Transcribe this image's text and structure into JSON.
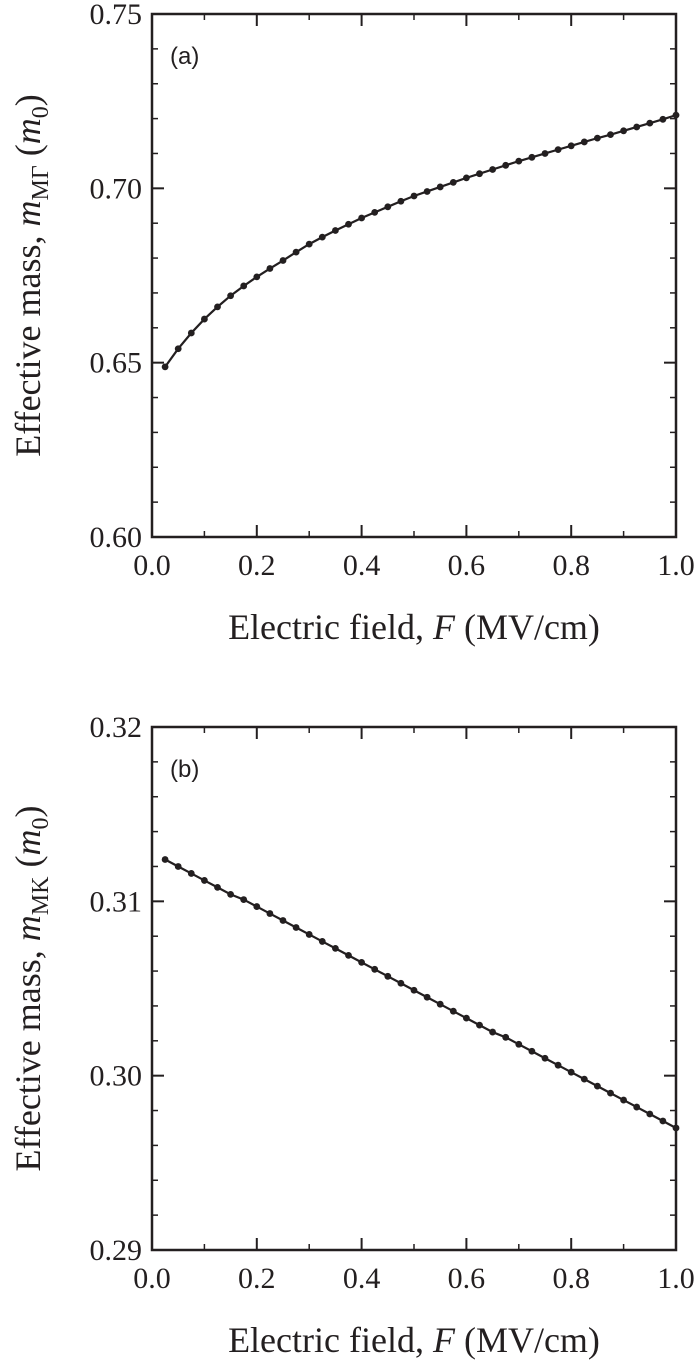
{
  "chart_data": [
    {
      "type": "line",
      "panel_label": "(a)",
      "xlabel": [
        "Electric field, ",
        "F",
        " (MV/cm)"
      ],
      "ylabel": [
        "Effective mass, ",
        "m",
        "MΓ",
        " (",
        "m",
        "0",
        ")"
      ],
      "x": [
        0.025,
        0.05,
        0.075,
        0.1,
        0.125,
        0.15,
        0.175,
        0.2,
        0.225,
        0.25,
        0.275,
        0.3,
        0.325,
        0.35,
        0.375,
        0.4,
        0.425,
        0.45,
        0.475,
        0.5,
        0.525,
        0.55,
        0.575,
        0.6,
        0.625,
        0.65,
        0.675,
        0.7,
        0.725,
        0.75,
        0.775,
        0.8,
        0.825,
        0.85,
        0.875,
        0.9,
        0.925,
        0.95,
        0.975,
        1.0
      ],
      "series": [
        {
          "color": "#231f20",
          "values": [
            0.6488,
            0.654,
            0.6585,
            0.6625,
            0.666,
            0.6692,
            0.672,
            0.6746,
            0.677,
            0.6793,
            0.6817,
            0.684,
            0.686,
            0.6879,
            0.6897,
            0.6915,
            0.6931,
            0.6947,
            0.6963,
            0.6978,
            0.6991,
            0.7004,
            0.7017,
            0.703,
            0.7042,
            0.7054,
            0.7066,
            0.7078,
            0.7089,
            0.71,
            0.7111,
            0.7122,
            0.7133,
            0.7144,
            0.7154,
            0.7165,
            0.7176,
            0.7187,
            0.7198,
            0.721
          ]
        }
      ],
      "markers": true,
      "xlim": [
        0,
        1
      ],
      "ylim": [
        0.6,
        0.75
      ],
      "xticks": [
        {
          "value": 0,
          "label": "0.0"
        },
        0.2,
        0.4,
        0.6,
        0.8,
        {
          "value": 1,
          "label": "1.0"
        }
      ],
      "yticks": [
        {
          "value": 0.6,
          "label": "0.60"
        },
        0.65,
        {
          "value": 0.7,
          "label": "0.70"
        },
        0.75
      ],
      "xminorticks": [
        0.1,
        0.3,
        0.5,
        0.7,
        0.9
      ],
      "yminorticks": [
        0.61,
        0.62,
        0.63,
        0.64,
        0.66,
        0.67,
        0.68,
        0.69,
        0.71,
        0.72,
        0.73,
        0.74
      ]
    },
    {
      "type": "line",
      "panel_label": "(b)",
      "xlabel": [
        "Electric field, ",
        "F",
        " (MV/cm)"
      ],
      "ylabel": [
        "Effective mass, ",
        "m",
        "MK",
        " (",
        "m",
        "0",
        ")"
      ],
      "x": [
        0.025,
        0.05,
        0.075,
        0.1,
        0.125,
        0.15,
        0.175,
        0.2,
        0.225,
        0.25,
        0.275,
        0.3,
        0.325,
        0.35,
        0.375,
        0.4,
        0.425,
        0.45,
        0.475,
        0.5,
        0.525,
        0.55,
        0.575,
        0.6,
        0.625,
        0.65,
        0.675,
        0.7,
        0.725,
        0.75,
        0.775,
        0.8,
        0.825,
        0.85,
        0.875,
        0.9,
        0.925,
        0.95,
        0.975,
        1.0
      ],
      "series": [
        {
          "color": "#231f20",
          "values": [
            0.3124,
            0.312,
            0.3116,
            0.3112,
            0.3108,
            0.3104,
            0.3101,
            0.3097,
            0.3093,
            0.3089,
            0.3085,
            0.3081,
            0.3077,
            0.3073,
            0.3069,
            0.3065,
            0.3061,
            0.3057,
            0.3053,
            0.3049,
            0.3045,
            0.3041,
            0.3037,
            0.3033,
            0.3029,
            0.3025,
            0.3022,
            0.3018,
            0.3014,
            0.301,
            0.3006,
            0.3002,
            0.2998,
            0.2994,
            0.299,
            0.2986,
            0.2982,
            0.2978,
            0.2974,
            0.297
          ]
        }
      ],
      "markers": true,
      "xlim": [
        0,
        1
      ],
      "ylim": [
        0.29,
        0.32
      ],
      "xticks": [
        {
          "value": 0,
          "label": "0.0"
        },
        0.2,
        0.4,
        0.6,
        0.8,
        {
          "value": 1,
          "label": "1.0"
        }
      ],
      "yticks": [
        0.29,
        {
          "value": 0.3,
          "label": "0.30"
        },
        0.31,
        0.32
      ],
      "xminorticks": [
        0.1,
        0.3,
        0.5,
        0.7,
        0.9
      ],
      "yminorticks": [
        0.292,
        0.294,
        0.296,
        0.298,
        0.302,
        0.304,
        0.306,
        0.308,
        0.312,
        0.314,
        0.316,
        0.318
      ]
    }
  ]
}
